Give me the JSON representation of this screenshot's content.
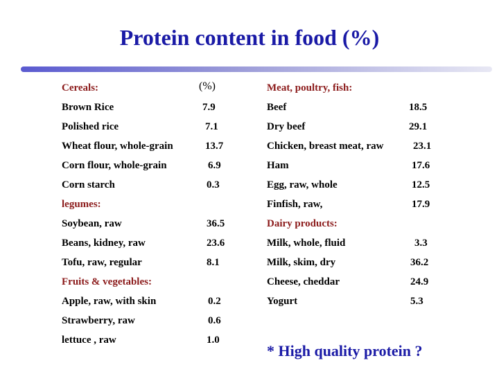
{
  "title": "Protein content in food (%)",
  "colors": {
    "title": "#1a1aa6",
    "section_header": "#8b1a1a",
    "note": "#1a1aa6"
  },
  "left": {
    "cereals_header": "Cereals:",
    "unit_header": "(%)",
    "cereals": [
      {
        "name": "Brown Rice",
        "value": "7.9"
      },
      {
        "name": "Polished rice",
        "value": "7.1"
      },
      {
        "name": "Wheat flour, whole-grain",
        "value": "13.7"
      },
      {
        "name": "Corn flour, whole-grain",
        "value": "6.9"
      },
      {
        "name": "Corn starch",
        "value": "0.3"
      }
    ],
    "legumes_header": "legumes:",
    "legumes": [
      {
        "name": "Soybean, raw",
        "value": "36.5"
      },
      {
        "name": "Beans, kidney, raw",
        "value": "23.6"
      },
      {
        "name": "Tofu, raw, regular",
        "value": "8.1"
      }
    ],
    "fruits_header": "Fruits & vegetables:",
    "fruits": [
      {
        "name": "Apple, raw, with skin",
        "value": "0.2"
      },
      {
        "name": "Strawberry, raw",
        "value": "0.6"
      },
      {
        "name": "lettuce , raw",
        "value": "1.0"
      }
    ]
  },
  "right": {
    "meat_header": "Meat, poultry, fish:",
    "meat": [
      {
        "name": "Beef",
        "value": "18.5"
      },
      {
        "name": "Dry beef",
        "value": "29.1"
      },
      {
        "name": "Chicken, breast meat, raw",
        "value": "23.1"
      },
      {
        "name": "Ham",
        "value": "17.6"
      },
      {
        "name": "Egg, raw, whole",
        "value": "12.5"
      },
      {
        "name": "Finfish, raw,",
        "value": "17.9"
      }
    ],
    "dairy_header": "Dairy products:",
    "dairy": [
      {
        "name": "Milk, whole, fluid",
        "value": "3.3"
      },
      {
        "name": "Milk, skim, dry",
        "value": "36.2"
      },
      {
        "name": "Cheese, cheddar",
        "value": "24.9"
      },
      {
        "name": "Yogurt",
        "value": "5.3"
      }
    ]
  },
  "note": "* High quality protein ?"
}
